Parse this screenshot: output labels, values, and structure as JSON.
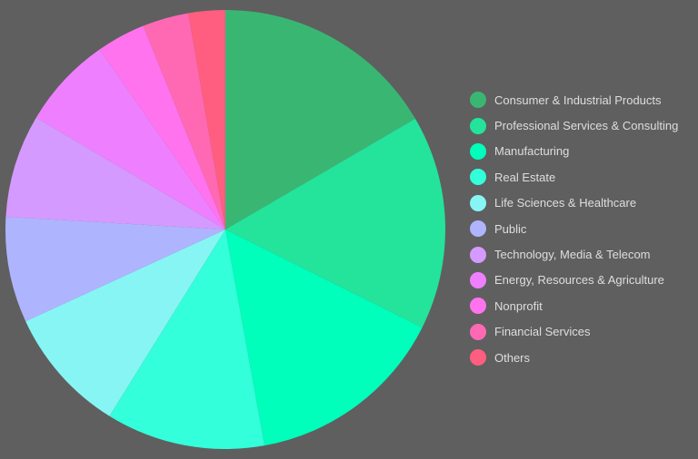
{
  "chart_data": {
    "type": "pie",
    "title": "",
    "start_angle_deg": 0,
    "direction": "clockwise",
    "legend_position": "right",
    "categories": [
      "Consumer & Industrial Products",
      "Professional Services & Consulting",
      "Manufacturing",
      "Real Estate",
      "Life Sciences & Healthcare",
      "Public",
      "Technology, Media & Telecom",
      "Energy, Resources & Agriculture",
      "Nonprofit",
      "Financial Services",
      "Others"
    ],
    "values": [
      16.6,
      15.8,
      14.8,
      11.7,
      9.3,
      7.8,
      7.6,
      6.8,
      3.6,
      3.4,
      2.7
    ],
    "colors": [
      "#3ab673",
      "#24e39b",
      "#00ffbb",
      "#33ffda",
      "#88f5f5",
      "#afb4ff",
      "#d59aff",
      "#ee80ff",
      "#ff73ee",
      "#ff69b4",
      "#ff5e80"
    ]
  },
  "legend": {
    "items": [
      {
        "label": "Consumer & Industrial Products",
        "color": "#3ab673"
      },
      {
        "label": "Professional Services & Consulting",
        "color": "#24e39b"
      },
      {
        "label": "Manufacturing",
        "color": "#00ffbb"
      },
      {
        "label": "Real Estate",
        "color": "#33ffda"
      },
      {
        "label": "Life Sciences & Healthcare",
        "color": "#88f5f5"
      },
      {
        "label": "Public",
        "color": "#afb4ff"
      },
      {
        "label": "Technology, Media & Telecom",
        "color": "#d59aff"
      },
      {
        "label": "Energy, Resources & Agriculture",
        "color": "#ee80ff"
      },
      {
        "label": "Nonprofit",
        "color": "#ff73ee"
      },
      {
        "label": "Financial Services",
        "color": "#ff69b4"
      },
      {
        "label": "Others",
        "color": "#ff5e80"
      }
    ]
  }
}
